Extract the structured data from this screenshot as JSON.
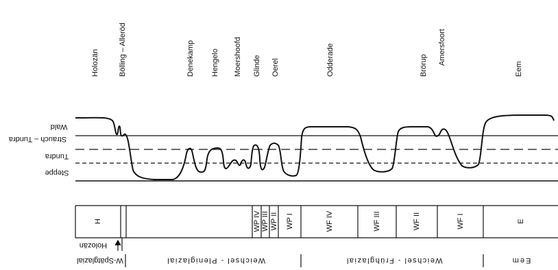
{
  "top_labels": [
    "Holozän",
    "Bölling – Alleröd",
    "Denekamp",
    "Hengelo",
    "Moershoofd",
    "Glinde",
    "Oerel",
    "Odderade",
    "Brörup",
    "Amersfoort",
    "Eem"
  ],
  "vegetation_labels": [
    "Wald",
    "Strauch – Tundra",
    "Tundra",
    "Steppe"
  ],
  "zone_labels": [
    "H",
    "WP IV",
    "WP III",
    "WP II",
    "WP I",
    "WF IV",
    "WF III",
    "WF II",
    "WF I",
    "E"
  ],
  "bottom_labels": [
    "Holozän",
    "W-Spätglazial",
    "Weichsel - Pleniglazial",
    "Weichsel - Frühglazial",
    "Eem"
  ],
  "colors": {
    "ink": "#111111",
    "background": "#ffffff"
  }
}
